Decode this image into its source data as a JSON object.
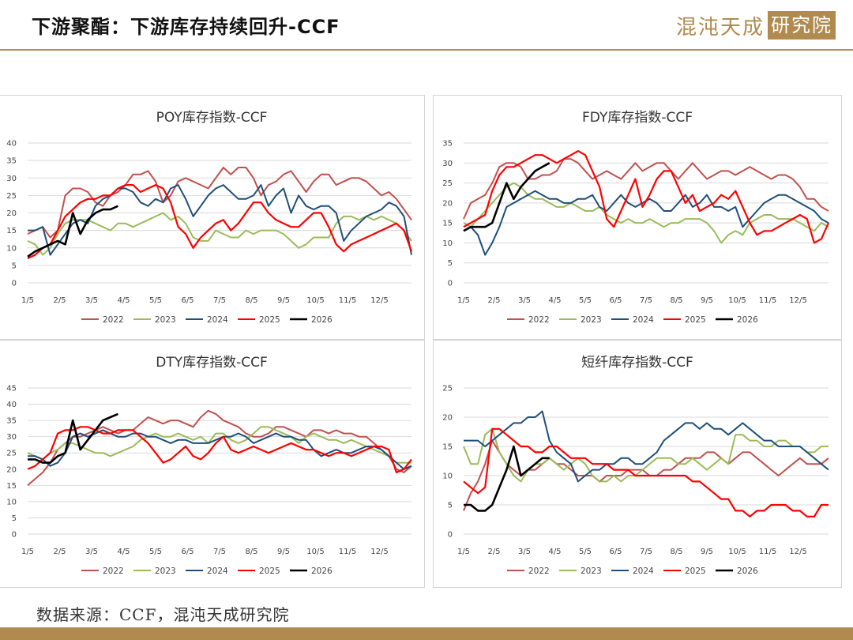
{
  "header": {
    "title": "下游聚酯：下游库存持续回升-CCF",
    "brand_text": "混沌天成",
    "brand_box": "研究院"
  },
  "source": "数据来源：CCF，混沌天成研究院",
  "colors": {
    "2022": "#c0504d",
    "2023": "#9bbb59",
    "2024": "#1f4e79",
    "2025": "#ff0000",
    "2026": "#000000",
    "gold": "#b08a4e"
  },
  "legend": [
    "2022",
    "2023",
    "2024",
    "2025",
    "2026"
  ],
  "chart_data": [
    {
      "type": "line",
      "title": "POY库存指数-CCF",
      "ylim": [
        0,
        40
      ],
      "yticks": [
        0,
        5,
        10,
        15,
        20,
        25,
        30,
        35,
        40
      ],
      "xticks": [
        "1/5",
        "2/5",
        "3/5",
        "4/5",
        "5/5",
        "6/5",
        "7/5",
        "8/5",
        "9/5",
        "10/5",
        "11/5",
        "12/5"
      ],
      "xmax": 51,
      "series": [
        {
          "name": "2022",
          "values": [
            14,
            15,
            16,
            13,
            15,
            25,
            27,
            27,
            26,
            23,
            22,
            25,
            26,
            28,
            31,
            31,
            32,
            29,
            23,
            25,
            29,
            30,
            29,
            28,
            27,
            30,
            33,
            31,
            33,
            33,
            30,
            25,
            28,
            29,
            31,
            32,
            29,
            26,
            29,
            31,
            31,
            28,
            29,
            30,
            30,
            29,
            27,
            25,
            26,
            24,
            21,
            18
          ]
        },
        {
          "name": "2023",
          "values": [
            12,
            11,
            8,
            10,
            14,
            17,
            18,
            18,
            18,
            17,
            16,
            15,
            17,
            17,
            16,
            17,
            18,
            19,
            20,
            18,
            19,
            17,
            13,
            12,
            12,
            15,
            14,
            13,
            13,
            15,
            14,
            15,
            15,
            15,
            14,
            12,
            10,
            11,
            13,
            13,
            13,
            17,
            19,
            19,
            18,
            19,
            18,
            19,
            18,
            17,
            15,
            12
          ]
        },
        {
          "name": "2024",
          "values": [
            15,
            15,
            16,
            8,
            11,
            14,
            17,
            18,
            17,
            22,
            24,
            25,
            27,
            27,
            26,
            23,
            22,
            24,
            23,
            27,
            28,
            24,
            19,
            22,
            25,
            27,
            28,
            26,
            24,
            24,
            25,
            28,
            22,
            25,
            27,
            20,
            25,
            22,
            21,
            22,
            22,
            20,
            12,
            15,
            17,
            19,
            20,
            21,
            23,
            22,
            19,
            8
          ]
        },
        {
          "name": "2025",
          "values": [
            7,
            8,
            10,
            11,
            15,
            19,
            21,
            23,
            24,
            24,
            25,
            25,
            27,
            28,
            28,
            26,
            27,
            28,
            27,
            23,
            16,
            14,
            10,
            13,
            15,
            17,
            18,
            15,
            17,
            20,
            23,
            23,
            20,
            18,
            17,
            16,
            16,
            18,
            20,
            20,
            16,
            11,
            9,
            11,
            12,
            13,
            14,
            15,
            16,
            17,
            15,
            9
          ]
        },
        {
          "name": "2026",
          "values": [
            7.5,
            9,
            10,
            11,
            12,
            11,
            20,
            14,
            18,
            20,
            21,
            21,
            22
          ]
        }
      ]
    },
    {
      "type": "line",
      "title": "FDY库存指数-CCF",
      "ylim": [
        0,
        35
      ],
      "yticks": [
        0,
        5,
        10,
        15,
        20,
        25,
        30,
        35
      ],
      "xticks": [
        "1/5",
        "2/5",
        "3/5",
        "4/5",
        "5/5",
        "6/5",
        "7/5",
        "8/5",
        "9/5",
        "10/5",
        "11/5",
        "12/5"
      ],
      "xmax": 51,
      "series": [
        {
          "name": "2022",
          "values": [
            16,
            20,
            21,
            22,
            25,
            29,
            30,
            30,
            29,
            26,
            26,
            27,
            27,
            28,
            31,
            31,
            30,
            28,
            26,
            27,
            28,
            27,
            26,
            28,
            30,
            28,
            29,
            30,
            30,
            28,
            26,
            28,
            30,
            28,
            26,
            27,
            28,
            28,
            27,
            28,
            29,
            28,
            27,
            26,
            27,
            27,
            26,
            24,
            21,
            21,
            19,
            18
          ]
        },
        {
          "name": "2023",
          "values": [
            15,
            14,
            16,
            18,
            20,
            22,
            24,
            25,
            24,
            22,
            21,
            21,
            20,
            19,
            19,
            20,
            19,
            18,
            18,
            19,
            17,
            16,
            15,
            16,
            15,
            15,
            16,
            15,
            14,
            15,
            15,
            16,
            16,
            16,
            15,
            13,
            10,
            12,
            13,
            12,
            15,
            16,
            17,
            17,
            16,
            16,
            16,
            15,
            14,
            13,
            15,
            14
          ]
        },
        {
          "name": "2024",
          "values": [
            13,
            14,
            12,
            7,
            10,
            14,
            19,
            20,
            21,
            22,
            23,
            22,
            21,
            21,
            20,
            20,
            21,
            21,
            22,
            19,
            18,
            20,
            22,
            20,
            19,
            20,
            21,
            20,
            18,
            18,
            20,
            22,
            19,
            20,
            22,
            19,
            19,
            18,
            19,
            14,
            16,
            18,
            20,
            21,
            22,
            22,
            21,
            20,
            19,
            18,
            16,
            15
          ]
        },
        {
          "name": "2025",
          "values": [
            14,
            15,
            16,
            17,
            23,
            27,
            29,
            29,
            30,
            31,
            32,
            32,
            31,
            30,
            31,
            32,
            33,
            32,
            28,
            24,
            16,
            14,
            18,
            22,
            26,
            19,
            22,
            26,
            28,
            28,
            24,
            20,
            22,
            18,
            19,
            20,
            22,
            21,
            23,
            19,
            15,
            12,
            13,
            13,
            14,
            15,
            16,
            17,
            16,
            10,
            11,
            15
          ]
        },
        {
          "name": "2026",
          "values": [
            13,
            14,
            14,
            14,
            15,
            20,
            25,
            21,
            24,
            26,
            28,
            29,
            30
          ]
        }
      ]
    },
    {
      "type": "line",
      "title": "DTY库存指数-CCF",
      "ylim": [
        0,
        45
      ],
      "yticks": [
        0,
        5,
        10,
        15,
        20,
        25,
        30,
        35,
        40,
        45
      ],
      "xticks": [
        "1/5",
        "2/5",
        "3/5",
        "4/5",
        "5/5",
        "6/5",
        "7/5",
        "8/5",
        "9/5",
        "10/5",
        "11/5",
        "12/5"
      ],
      "xmax": 51,
      "series": [
        {
          "name": "2022",
          "values": [
            15,
            17,
            19,
            22,
            26,
            28,
            30,
            30,
            31,
            32,
            33,
            32,
            31,
            32,
            32,
            34,
            36,
            35,
            34,
            35,
            35,
            34,
            33,
            36,
            38,
            37,
            35,
            34,
            33,
            31,
            30,
            30,
            31,
            33,
            33,
            32,
            31,
            30,
            32,
            32,
            31,
            32,
            31,
            31,
            30,
            30,
            28,
            26,
            24,
            20,
            19,
            21
          ]
        },
        {
          "name": "2023",
          "values": [
            25,
            24,
            23,
            25,
            26,
            28,
            28,
            27,
            26,
            25,
            25,
            24,
            25,
            26,
            27,
            29,
            30,
            31,
            30,
            30,
            31,
            30,
            29,
            30,
            28,
            31,
            31,
            29,
            28,
            29,
            31,
            33,
            33,
            32,
            31,
            30,
            28,
            30,
            31,
            30,
            29,
            29,
            28,
            29,
            28,
            27,
            26,
            25,
            24,
            22,
            22,
            22
          ]
        },
        {
          "name": "2024",
          "values": [
            24,
            24,
            23,
            21,
            22,
            25,
            30,
            31,
            30,
            31,
            32,
            31,
            30,
            30,
            31,
            31,
            30,
            30,
            29,
            28,
            29,
            29,
            28,
            28,
            28,
            29,
            30,
            30,
            31,
            30,
            28,
            29,
            30,
            31,
            30,
            30,
            29,
            29,
            26,
            24,
            25,
            26,
            25,
            25,
            26,
            27,
            27,
            26,
            24,
            22,
            20,
            21
          ]
        },
        {
          "name": "2025",
          "values": [
            20,
            21,
            23,
            25,
            31,
            32,
            32,
            33,
            33,
            32,
            31,
            31,
            32,
            32,
            32,
            30,
            28,
            25,
            22,
            23,
            25,
            27,
            24,
            23,
            25,
            28,
            30,
            26,
            25,
            26,
            27,
            26,
            25,
            26,
            27,
            28,
            27,
            26,
            26,
            25,
            24,
            25,
            25,
            24,
            25,
            26,
            27,
            27,
            26,
            19,
            20,
            23
          ]
        },
        {
          "name": "2026",
          "values": [
            23,
            23,
            22,
            22,
            24,
            25,
            35,
            26,
            29,
            32,
            35,
            36,
            37
          ]
        }
      ]
    },
    {
      "type": "line",
      "title": "短纤库存指数-CCF",
      "ylim": [
        0,
        25
      ],
      "yticks": [
        0,
        5,
        10,
        15,
        20,
        25
      ],
      "xticks": [
        "1/5",
        "2/5",
        "3/5",
        "4/5",
        "5/5",
        "6/5",
        "7/5",
        "8/5",
        "9/5",
        "10/5",
        "11/5",
        "12/5"
      ],
      "xmax": 51,
      "series": [
        {
          "name": "2022",
          "values": [
            4,
            7,
            9,
            12,
            16,
            14,
            12,
            11,
            10,
            11,
            11,
            12,
            13,
            12,
            12,
            11,
            10,
            10,
            10,
            9,
            10,
            10,
            10,
            11,
            11,
            11,
            10,
            10,
            11,
            11,
            12,
            13,
            13,
            13,
            14,
            14,
            13,
            12,
            13,
            14,
            14,
            13,
            12,
            11,
            10,
            11,
            12,
            13,
            12,
            12,
            12,
            13
          ]
        },
        {
          "name": "2023",
          "values": [
            15,
            12,
            12,
            17,
            18,
            14,
            12,
            10,
            9,
            11,
            12,
            12,
            13,
            12,
            11,
            12,
            13,
            12,
            10,
            9,
            9,
            10,
            9,
            10,
            10,
            11,
            12,
            13,
            13,
            13,
            12,
            12,
            13,
            12,
            11,
            12,
            13,
            12,
            17,
            17,
            16,
            16,
            15,
            15,
            16,
            16,
            15,
            15,
            14,
            14,
            15,
            15
          ]
        },
        {
          "name": "2024",
          "values": [
            16,
            16,
            16,
            15,
            16,
            17,
            18,
            19,
            19,
            20,
            20,
            21,
            16,
            14,
            13,
            12,
            9,
            10,
            11,
            11,
            12,
            12,
            13,
            13,
            12,
            12,
            13,
            14,
            16,
            17,
            18,
            19,
            19,
            18,
            19,
            18,
            18,
            17,
            18,
            19,
            18,
            17,
            16,
            16,
            15,
            15,
            15,
            15,
            14,
            13,
            12,
            11
          ]
        },
        {
          "name": "2025",
          "values": [
            9,
            8,
            7,
            8,
            18,
            18,
            17,
            16,
            15,
            15,
            14,
            14,
            15,
            15,
            14,
            13,
            13,
            13,
            12,
            12,
            12,
            11,
            11,
            11,
            10,
            10,
            10,
            10,
            10,
            10,
            10,
            10,
            9,
            9,
            8,
            7,
            6,
            6,
            4,
            4,
            3,
            4,
            4,
            5,
            5,
            5,
            4,
            4,
            3,
            3,
            5,
            5
          ]
        },
        {
          "name": "2026",
          "values": [
            5,
            5,
            4,
            4,
            5,
            8,
            11,
            15,
            10,
            11,
            12,
            13,
            13
          ]
        }
      ]
    }
  ]
}
